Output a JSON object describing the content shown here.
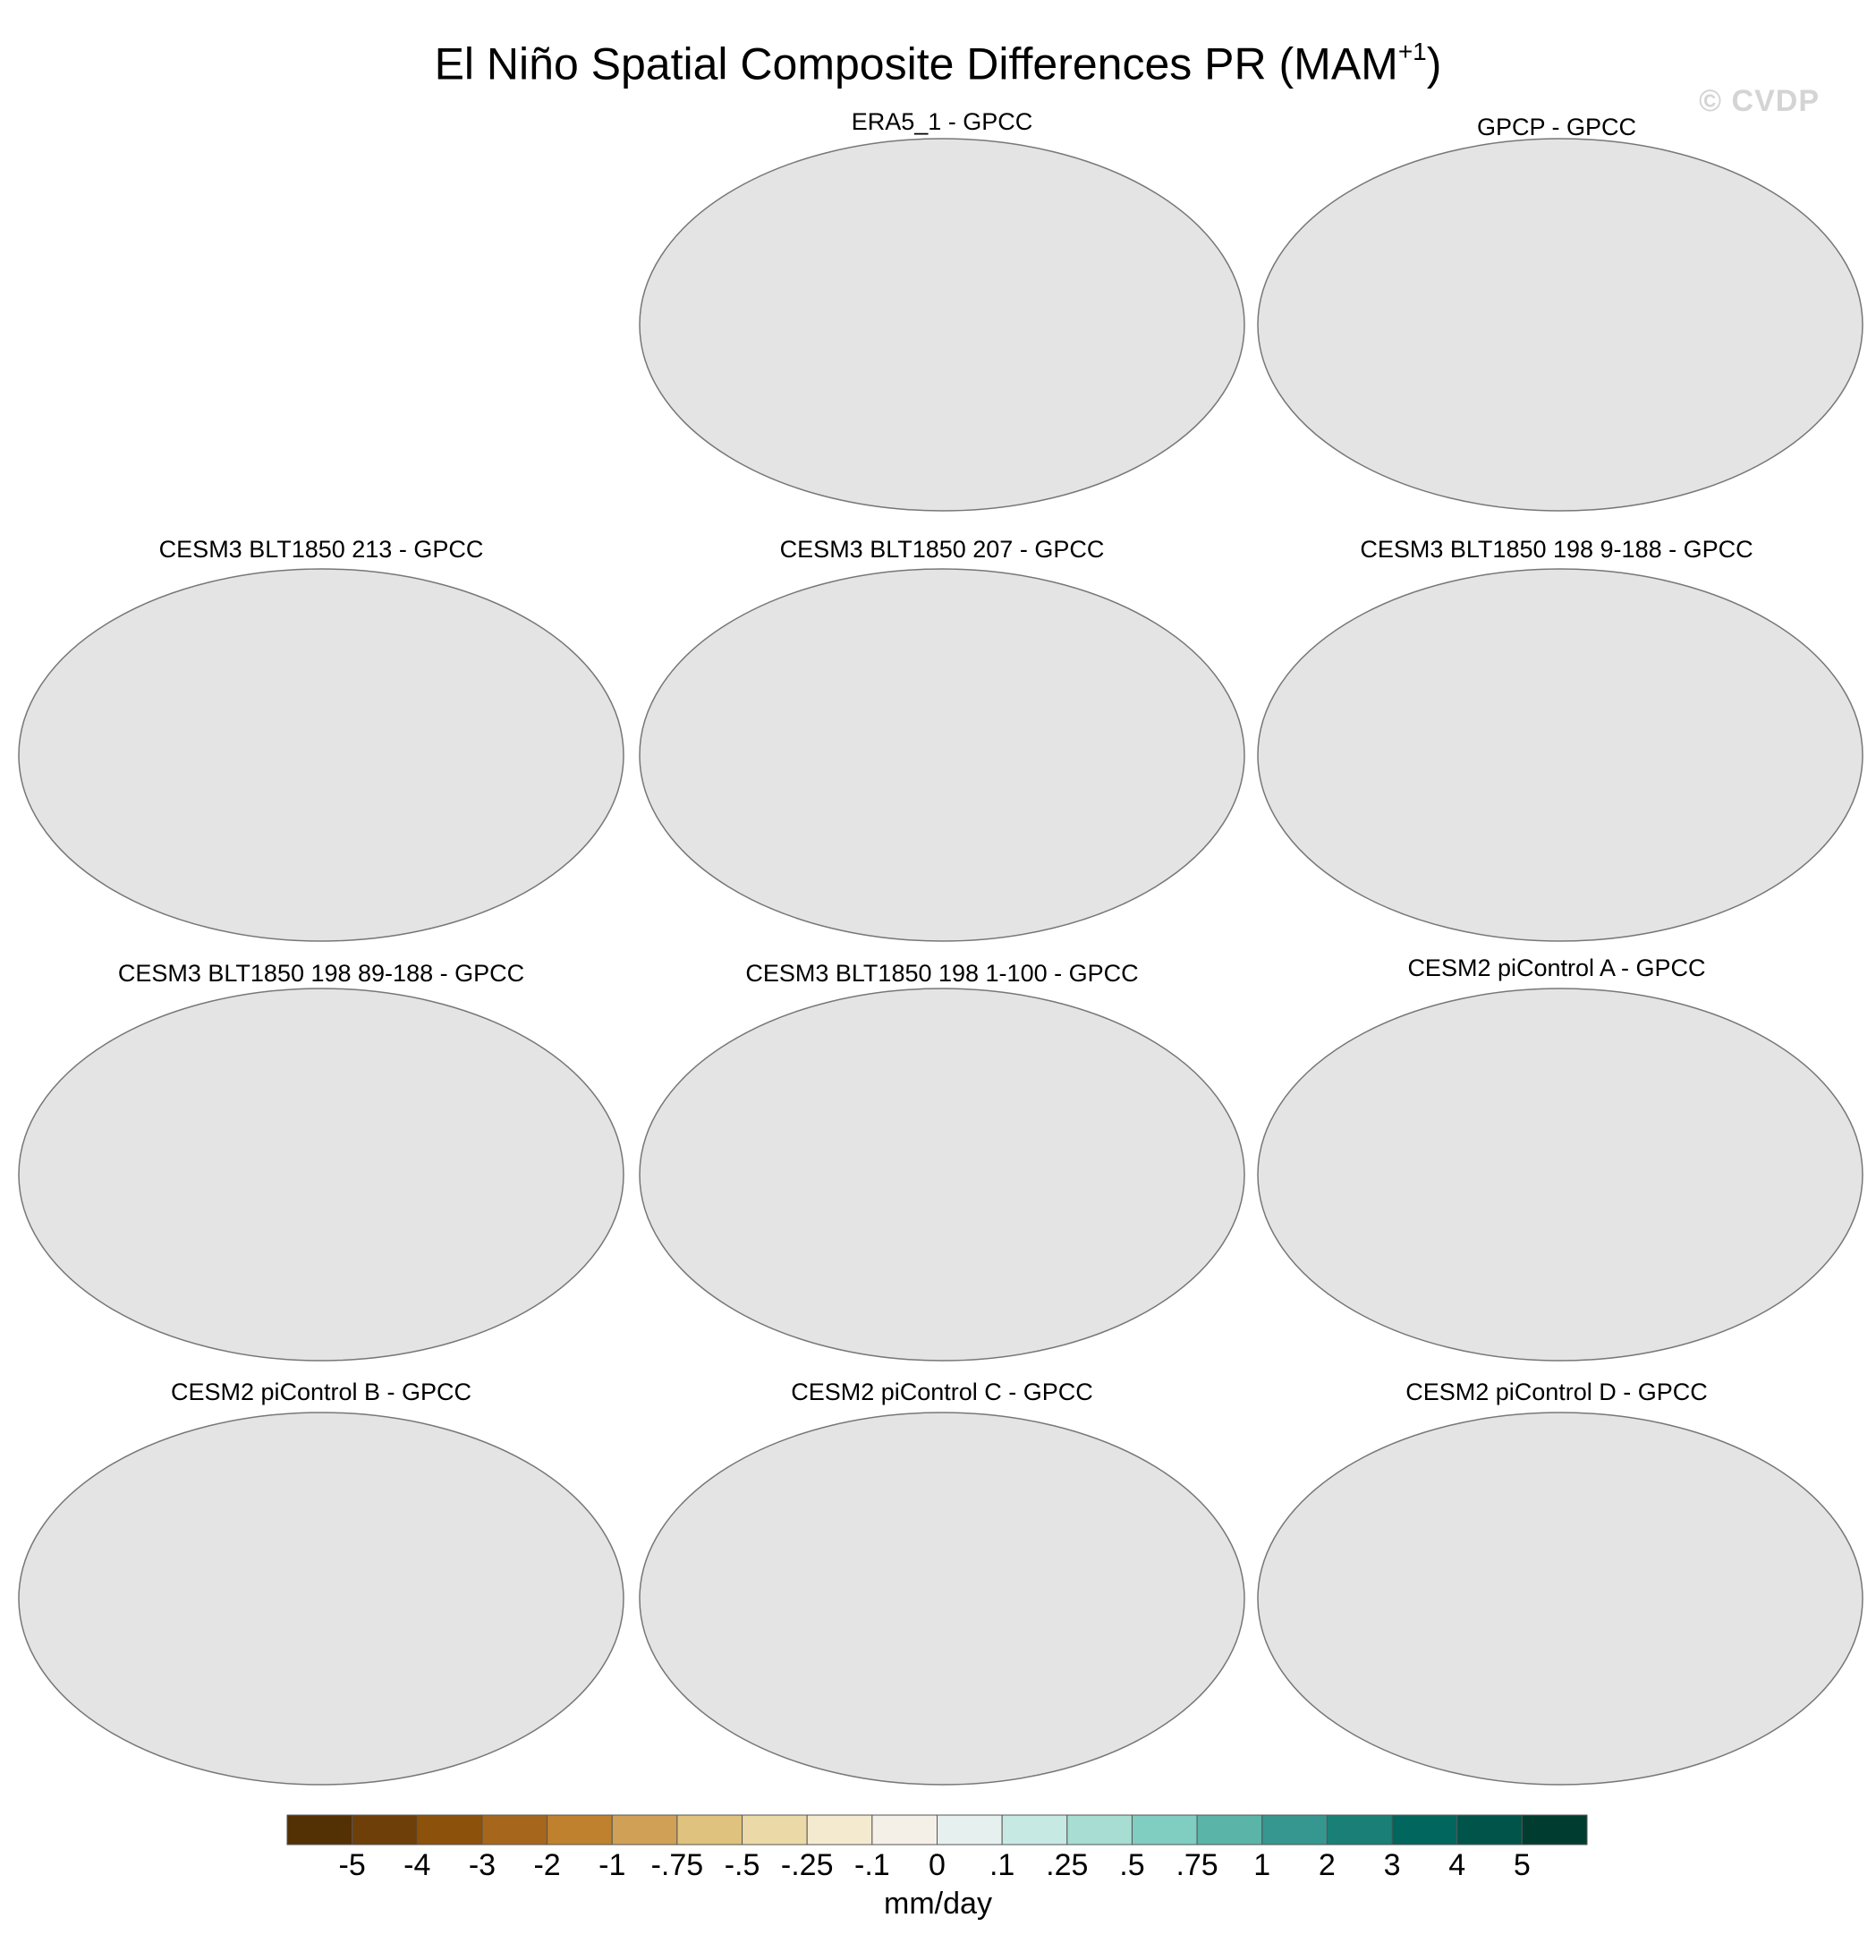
{
  "title": "El Niño Spatial Composite Differences PR (MAM",
  "title_superscript": "+1",
  "title_suffix": ")",
  "watermark": "© CVDP",
  "panels": [
    {
      "title": "ERA5_1 - GPCC"
    },
    {
      "title": "GPCP - GPCC"
    },
    {
      "title": "CESM3 BLT1850 213 - GPCC"
    },
    {
      "title": "CESM3 BLT1850 207 - GPCC"
    },
    {
      "title": "CESM3 BLT1850 198 9-188 - GPCC"
    },
    {
      "title": "CESM3 BLT1850 198 89-188 - GPCC"
    },
    {
      "title": "CESM3 BLT1850 198 1-100 - GPCC"
    },
    {
      "title": "CESM2 piControl A - GPCC"
    },
    {
      "title": "CESM2 piControl B - GPCC"
    },
    {
      "title": "CESM2 piControl C - GPCC"
    },
    {
      "title": "CESM2 piControl D - GPCC"
    }
  ],
  "colorbar": {
    "units": "mm/day",
    "tick_labels": [
      "-5",
      "-4",
      "-3",
      "-2",
      "-1",
      "-.75",
      "-.5",
      "-.25",
      "-.1",
      "0",
      ".1",
      ".25",
      ".5",
      ".75",
      "1",
      "2",
      "3",
      "4",
      "5"
    ],
    "colors": [
      "#543005",
      "#6f3f0a",
      "#8c510a",
      "#a6661c",
      "#bf812d",
      "#cfa055",
      "#dfc27d",
      "#ecd9a8",
      "#f3ead0",
      "#f4f0e8",
      "#e6f0ee",
      "#c7e9e3",
      "#a7ddd3",
      "#80cdc1",
      "#5ab4a8",
      "#35978f",
      "#1a7f76",
      "#01665e",
      "#00544a",
      "#003c30"
    ]
  },
  "style": {
    "ocean_color": "#e4e4e4",
    "coast_color": "#777777"
  }
}
